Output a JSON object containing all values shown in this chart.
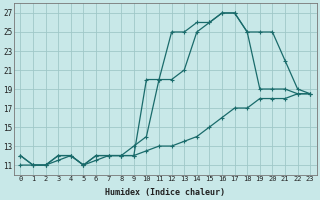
{
  "xlabel": "Humidex (Indice chaleur)",
  "bg_color": "#c8e8e8",
  "grid_color": "#a0c8c8",
  "line_color": "#1a6b6b",
  "xlim": [
    -0.5,
    23.5
  ],
  "ylim": [
    10.0,
    28.0
  ],
  "yticks": [
    11,
    13,
    15,
    17,
    19,
    21,
    23,
    25,
    27
  ],
  "xticks": [
    0,
    1,
    2,
    3,
    4,
    5,
    6,
    7,
    8,
    9,
    10,
    11,
    12,
    13,
    14,
    15,
    16,
    17,
    18,
    19,
    20,
    21,
    22,
    23
  ],
  "line1_x": [
    0,
    1,
    2,
    3,
    4,
    5,
    6,
    7,
    8,
    9,
    10,
    11,
    12,
    13,
    14,
    15,
    16,
    17,
    18,
    19,
    20,
    21,
    22,
    23
  ],
  "line1_y": [
    12,
    11,
    11,
    12,
    12,
    11,
    12,
    12,
    12,
    12,
    20,
    20,
    25,
    25,
    26,
    26,
    27,
    27,
    25,
    19,
    19,
    19,
    18.5,
    18.5
  ],
  "line2_x": [
    0,
    1,
    2,
    3,
    4,
    5,
    6,
    7,
    8,
    9,
    10,
    11,
    12,
    13,
    14,
    15,
    16,
    17,
    18,
    19,
    20,
    21,
    22,
    23
  ],
  "line2_y": [
    11,
    11,
    11,
    11.5,
    12,
    11,
    11.5,
    12,
    12,
    12,
    12.5,
    13,
    13,
    13.5,
    14,
    15,
    16,
    17,
    17,
    18,
    18,
    18,
    18.5,
    18.5
  ],
  "line3_x": [
    0,
    1,
    2,
    3,
    4,
    5,
    6,
    7,
    8,
    9,
    10,
    11,
    12,
    13,
    14,
    15,
    16,
    17,
    18,
    19,
    20,
    21,
    22,
    23
  ],
  "line3_y": [
    12,
    11,
    11,
    12,
    12,
    11,
    12,
    12,
    12,
    13,
    14,
    20,
    20,
    21,
    25,
    26,
    27,
    27,
    25,
    25,
    25,
    22,
    19,
    18.5
  ]
}
